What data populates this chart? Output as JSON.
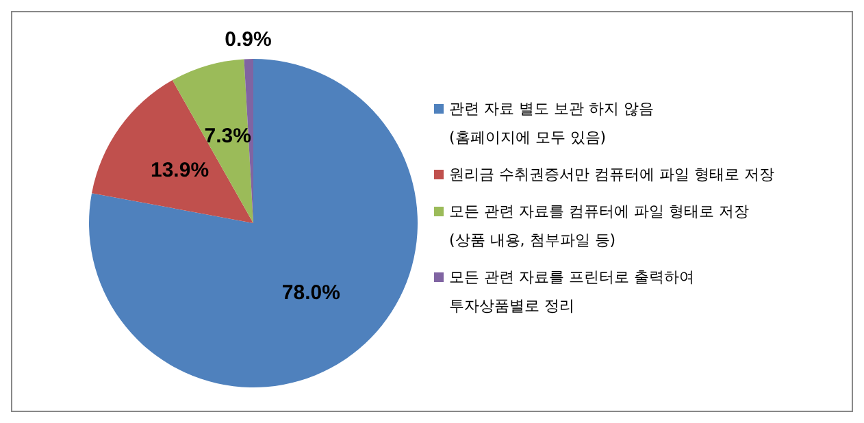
{
  "chart_data": {
    "type": "pie",
    "categories": [
      "관련 자료 별도 보관 하지 않음\n(홈페이지에 모두 있음)",
      "원리금 수취권증서만 컴퓨터에 파일 형태로 저장",
      "모든 관련 자료를 컴퓨터에 파일 형태로 저장\n(상품 내용, 첨부파일 등)",
      "모든 관련 자료를 프린터로 출력하여\n투자상품별로 정리"
    ],
    "values": [
      78.0,
      13.9,
      7.3,
      0.9
    ],
    "colors": [
      "#4f81bd",
      "#c0504d",
      "#9bbb59",
      "#8064a2"
    ],
    "value_labels": [
      "78.0%",
      "13.9%",
      "7.3%",
      "0.9%"
    ],
    "legend": "right"
  }
}
